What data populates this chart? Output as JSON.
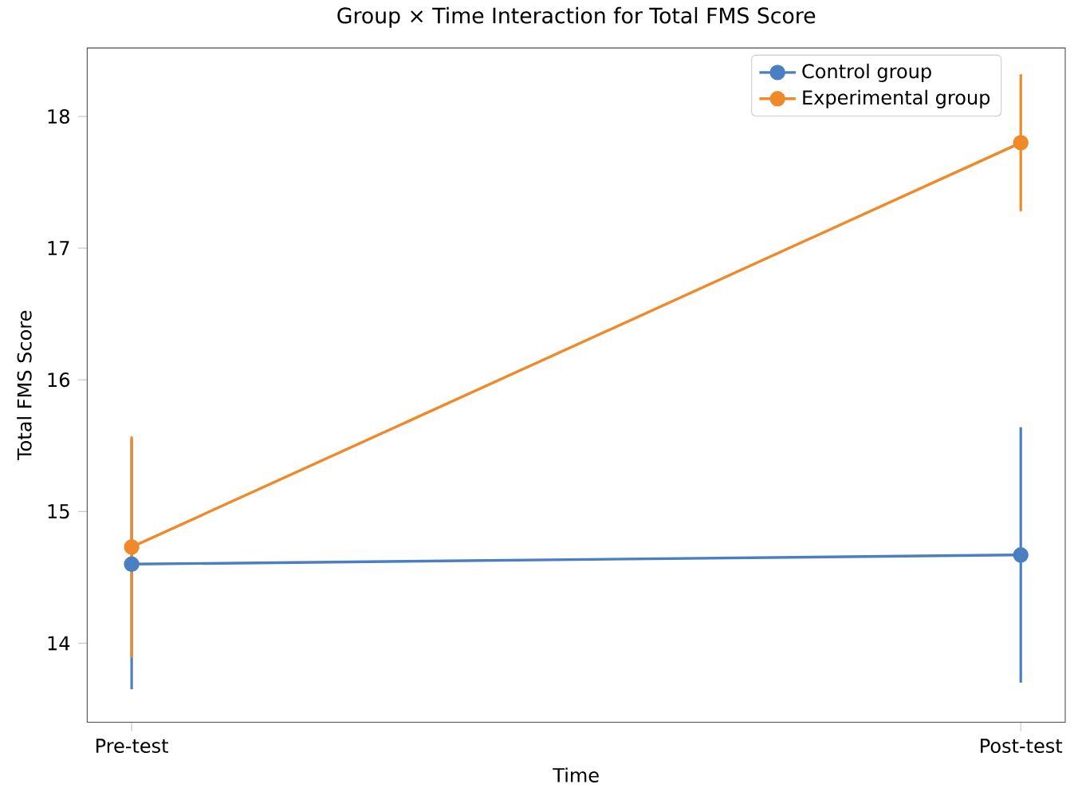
{
  "chart_data": {
    "type": "line",
    "title": "Group × Time Interaction for Total FMS Score",
    "xlabel": "Time",
    "ylabel": "Total FMS Score",
    "categories": [
      "Pre-test",
      "Post-test"
    ],
    "series": [
      {
        "name": "Control group",
        "color": "#4a7fc1",
        "values": [
          14.6,
          14.67
        ],
        "errors": [
          0.95,
          0.97
        ]
      },
      {
        "name": "Experimental group",
        "color": "#ef8a2a",
        "values": [
          14.73,
          17.8
        ],
        "errors": [
          0.84,
          0.52
        ]
      }
    ],
    "ylim": [
      13.4,
      18.52
    ],
    "yticks": [
      14,
      15,
      16,
      17,
      18
    ],
    "legend": "top right",
    "marker": "circle",
    "line_style": "solid",
    "grid": false
  }
}
